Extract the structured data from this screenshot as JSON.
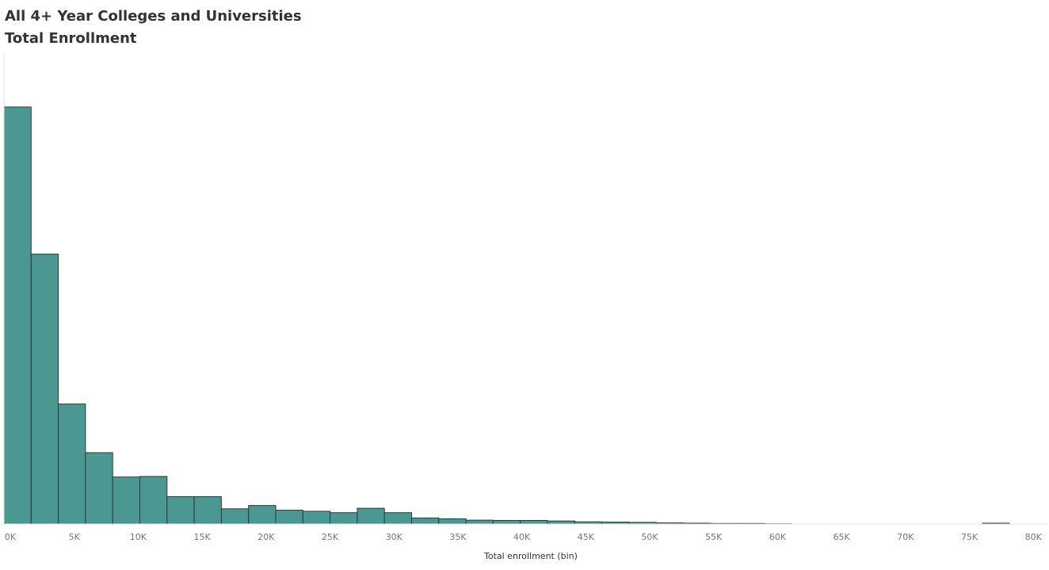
{
  "chart_data": {
    "type": "bar",
    "title": "All 4+ Year Colleges and Universities",
    "subtitle": "Total Enrollment",
    "xlabel": "Total enrollment (bin)",
    "ylabel": "",
    "bin_width": 2125,
    "x_ticks": [
      0,
      5000,
      10000,
      15000,
      20000,
      25000,
      30000,
      35000,
      40000,
      45000,
      50000,
      55000,
      60000,
      65000,
      70000,
      75000,
      80000
    ],
    "x_tick_labels": [
      "0K",
      "5K",
      "10K",
      "15K",
      "20K",
      "25K",
      "30K",
      "35K",
      "40K",
      "45K",
      "50K",
      "55K",
      "60K",
      "65K",
      "70K",
      "75K",
      "80K"
    ],
    "xlim": [
      0,
      82000
    ],
    "ylim": [
      0,
      1700
    ],
    "grid": false,
    "bin_starts": [
      0,
      2125,
      4250,
      6375,
      8500,
      10625,
      12750,
      14875,
      17000,
      19125,
      21250,
      23375,
      25500,
      27625,
      29750,
      31875,
      34000,
      36125,
      38250,
      40375,
      42500,
      44625,
      46750,
      48875,
      51000,
      53125,
      55250,
      57375,
      59500,
      61625,
      63750,
      65875,
      68000,
      70125,
      72250,
      74375,
      76500,
      78625
    ],
    "values": [
      1508,
      976,
      434,
      258,
      170,
      172,
      99,
      99,
      55,
      67,
      50,
      46,
      41,
      57,
      41,
      22,
      19,
      14,
      13,
      13,
      11,
      8,
      7,
      6,
      4,
      3,
      2,
      2,
      1,
      0,
      0,
      0,
      0,
      0,
      0,
      0,
      3,
      0
    ],
    "colors": {
      "bar_fill": "#4a9891",
      "bar_stroke": "#2b3a38",
      "axis": "#e6e6e6",
      "tick_text": "#777777",
      "label_text": "#333333"
    }
  }
}
